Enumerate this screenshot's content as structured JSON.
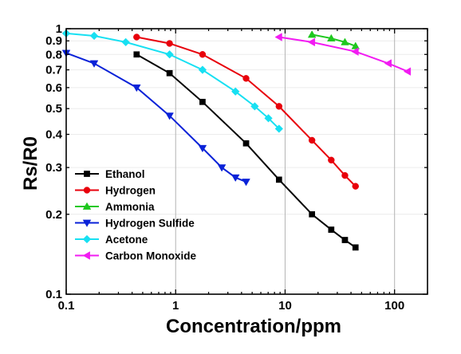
{
  "chart_data": {
    "type": "line",
    "title": "",
    "xlabel": "Concentration/ppm",
    "ylabel": "Rs/R0",
    "xscale": "log",
    "yscale": "log",
    "xlim": [
      0.1,
      200
    ],
    "ylim": [
      0.1,
      1
    ],
    "x_ticks": [
      "0.1",
      "1",
      "10",
      "100"
    ],
    "y_ticks": [
      "0.1",
      "0.2",
      "0.3",
      "0.4",
      "0.5",
      "0.6",
      "0.7",
      "0.8",
      "0.9",
      "1"
    ],
    "grid": "vertical",
    "legend_position": "bottom-left",
    "series": [
      {
        "name": "Ethanol",
        "color": "#000000",
        "marker": "square",
        "x": [
          0.44,
          0.88,
          1.76,
          4.4,
          8.8,
          17.6,
          26.4,
          35.2,
          44
        ],
        "y": [
          0.8,
          0.68,
          0.53,
          0.37,
          0.27,
          0.2,
          0.175,
          0.16,
          0.15
        ]
      },
      {
        "name": "Hydrogen",
        "color": "#e8000b",
        "marker": "circle",
        "x": [
          0.44,
          0.88,
          1.76,
          4.4,
          8.8,
          17.6,
          26.4,
          35.2,
          44
        ],
        "y": [
          0.93,
          0.88,
          0.8,
          0.65,
          0.51,
          0.38,
          0.32,
          0.28,
          0.255
        ]
      },
      {
        "name": "Ammonia",
        "color": "#1ec81e",
        "marker": "triangle-up",
        "x": [
          17.6,
          26.4,
          35.2,
          44
        ],
        "y": [
          0.95,
          0.92,
          0.89,
          0.86
        ]
      },
      {
        "name": "Hydrogen Sulfide",
        "color": "#0a22d8",
        "marker": "triangle-down",
        "x": [
          0.1,
          0.18,
          0.44,
          0.88,
          1.76,
          2.64,
          3.52,
          4.4
        ],
        "y": [
          0.81,
          0.74,
          0.6,
          0.47,
          0.355,
          0.3,
          0.275,
          0.265
        ]
      },
      {
        "name": "Acetone",
        "color": "#17e0f2",
        "marker": "diamond",
        "x": [
          0.1,
          0.18,
          0.35,
          0.88,
          1.76,
          3.52,
          5.28,
          7.04,
          8.8
        ],
        "y": [
          0.96,
          0.94,
          0.89,
          0.8,
          0.7,
          0.58,
          0.51,
          0.46,
          0.42
        ]
      },
      {
        "name": "Carbon Monoxide",
        "color": "#f21cf2",
        "marker": "triangle-left",
        "x": [
          8.8,
          17.6,
          44,
          88,
          132
        ],
        "y": [
          0.93,
          0.89,
          0.82,
          0.74,
          0.69
        ]
      }
    ]
  }
}
